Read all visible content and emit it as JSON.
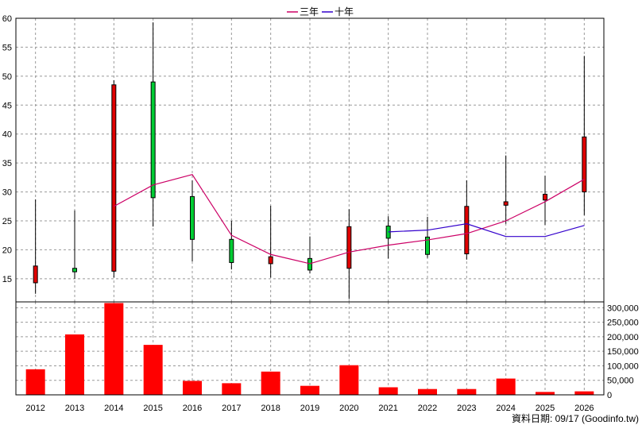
{
  "legend": {
    "items": [
      {
        "label": "三年",
        "color": "#cc0066"
      },
      {
        "label": "十年",
        "color": "#3300cc"
      }
    ]
  },
  "footer": {
    "text": "資料日期: 09/17  (Goodinfo.tw)"
  },
  "colors": {
    "up_candle": "#e00000",
    "down_candle": "#00cc33",
    "volume_bar": "#ff0000",
    "grid": "#999999"
  },
  "chart_data": [
    {
      "type": "candlestick",
      "categories": [
        "2012",
        "2013",
        "2014",
        "2015",
        "2016",
        "2017",
        "2018",
        "2019",
        "2020",
        "2021",
        "2022",
        "2023",
        "2024",
        "2025",
        "2026"
      ],
      "ylim": [
        11,
        60
      ],
      "yticks": [
        15,
        20,
        25,
        30,
        35,
        40,
        45,
        50,
        55,
        60
      ],
      "candles": [
        {
          "x": "2012",
          "open": 14.3,
          "close": 17.2,
          "high": 28.7,
          "low": 12.4,
          "dir": "up"
        },
        {
          "x": "2013",
          "open": 16.8,
          "close": 16.2,
          "high": 26.8,
          "low": 15.0,
          "dir": "down"
        },
        {
          "x": "2014",
          "open": 16.3,
          "close": 48.5,
          "high": 49.3,
          "low": 15.2,
          "dir": "up"
        },
        {
          "x": "2015",
          "open": 49.0,
          "close": 29.0,
          "high": 59.3,
          "low": 24.0,
          "dir": "down"
        },
        {
          "x": "2016",
          "open": 29.2,
          "close": 21.8,
          "high": 32.0,
          "low": 18.0,
          "dir": "down"
        },
        {
          "x": "2017",
          "open": 21.8,
          "close": 17.8,
          "high": 25.0,
          "low": 16.6,
          "dir": "down"
        },
        {
          "x": "2018",
          "open": 17.6,
          "close": 18.8,
          "high": 27.6,
          "low": 15.2,
          "dir": "up"
        },
        {
          "x": "2019",
          "open": 18.5,
          "close": 16.5,
          "high": 22.3,
          "low": 15.9,
          "dir": "down"
        },
        {
          "x": "2020",
          "open": 16.8,
          "close": 24.0,
          "high": 27.0,
          "low": 11.5,
          "dir": "up"
        },
        {
          "x": "2021",
          "open": 24.1,
          "close": 22.0,
          "high": 25.8,
          "low": 18.5,
          "dir": "down"
        },
        {
          "x": "2022",
          "open": 22.2,
          "close": 19.2,
          "high": 25.7,
          "low": 18.6,
          "dir": "down"
        },
        {
          "x": "2023",
          "open": 19.3,
          "close": 27.5,
          "high": 32.0,
          "low": 18.3,
          "dir": "up"
        },
        {
          "x": "2024",
          "open": 27.7,
          "close": 28.3,
          "high": 36.3,
          "low": 24.5,
          "dir": "up"
        },
        {
          "x": "2025",
          "open": 28.6,
          "close": 29.6,
          "high": 32.8,
          "low": 24.3,
          "dir": "up"
        },
        {
          "x": "2026",
          "open": 30.0,
          "close": 39.5,
          "high": 53.5,
          "low": 26.0,
          "dir": "up"
        }
      ],
      "series": [
        {
          "name": "三年",
          "color": "#cc0066",
          "x": [
            "2014",
            "2015",
            "2016",
            "2017",
            "2018",
            "2019",
            "2020",
            "2021",
            "2022",
            "2023",
            "2024",
            "2025",
            "2026"
          ],
          "values": [
            27.5,
            31.2,
            33.0,
            22.5,
            19.2,
            17.6,
            19.6,
            20.8,
            21.7,
            22.8,
            25.0,
            28.3,
            32.2
          ]
        },
        {
          "name": "十年",
          "color": "#3300cc",
          "x": [
            "2021",
            "2022",
            "2023",
            "2024",
            "2025",
            "2026"
          ],
          "values": [
            23.1,
            23.4,
            24.5,
            22.3,
            22.3,
            24.2
          ]
        }
      ]
    },
    {
      "type": "bar",
      "categories": [
        "2012",
        "2013",
        "2014",
        "2015",
        "2016",
        "2017",
        "2018",
        "2019",
        "2020",
        "2021",
        "2022",
        "2023",
        "2024",
        "2025",
        "2026"
      ],
      "values": [
        88000,
        208000,
        316000,
        172000,
        48000,
        40000,
        80000,
        31000,
        102000,
        26000,
        20000,
        20000,
        56000,
        10000,
        12000
      ],
      "ylim": [
        0,
        320000
      ],
      "yticks": [
        0,
        50000,
        100000,
        150000,
        200000,
        250000,
        300000
      ],
      "ytick_labels": [
        "0",
        "50,000",
        "100,000",
        "150,000",
        "200,000",
        "250,000",
        "300,000"
      ]
    }
  ]
}
